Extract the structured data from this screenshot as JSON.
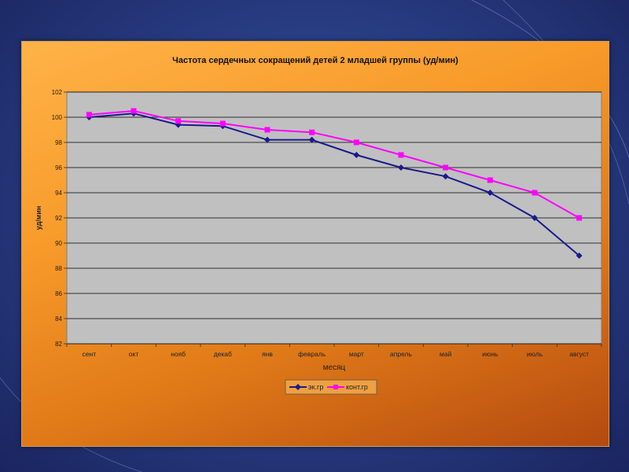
{
  "chart_data": {
    "type": "line",
    "title": "Частота сердечных сокращений детей 2 младшей группы (уд/мин)",
    "xlabel": "месяц",
    "ylabel": "уд/мин",
    "categories": [
      "сент",
      "окт",
      "нояб",
      "декаб",
      "янв",
      "февраль",
      "март",
      "апрель",
      "май",
      "июнь",
      "июль",
      "август"
    ],
    "ylim": [
      82,
      102
    ],
    "yticks": [
      "82",
      "84",
      "86",
      "88",
      "90",
      "92",
      "94",
      "96",
      "98",
      "100",
      "102"
    ],
    "grid": true,
    "legend_position": "bottom",
    "series": [
      {
        "name": "эк.гр",
        "color": "#1a1a8c",
        "marker": "diamond",
        "values": [
          100,
          100.3,
          99.4,
          99.3,
          98.2,
          98.2,
          97,
          96,
          95.3,
          94,
          92,
          89
        ]
      },
      {
        "name": "конт.гр",
        "color": "#ff00ff",
        "marker": "square",
        "values": [
          100.2,
          100.5,
          99.7,
          99.5,
          99,
          98.8,
          98,
          97,
          96,
          95,
          94,
          92
        ]
      }
    ]
  }
}
